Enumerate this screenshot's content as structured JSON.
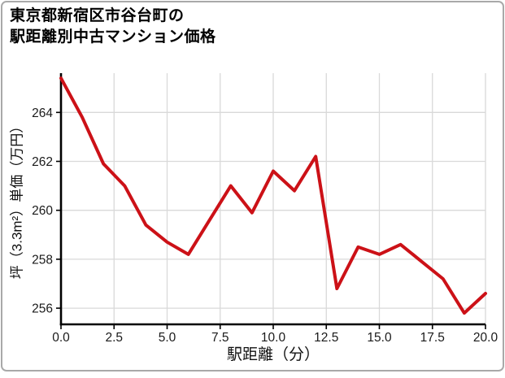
{
  "title": {
    "line1": "東京都新宿区市谷台町の",
    "line2": "駅距離別中古マンション価格"
  },
  "colors": {
    "line": "#cc1117",
    "grid": "#d9d9d9",
    "spine": "#000000",
    "tick_text": "#1a1a1a",
    "frame_border": "#a9a9a9",
    "background": "#ffffff"
  },
  "chart_data": {
    "type": "line",
    "title": "東京都新宿区市谷台町の駅距離別中古マンション価格",
    "xlabel": "駅距離（分）",
    "ylabel": "坪（3.3m²）単価（万円）",
    "x": [
      0,
      1,
      2,
      3,
      4,
      5,
      6,
      7,
      8,
      9,
      10,
      11,
      12,
      13,
      14,
      15,
      16,
      17,
      18,
      19,
      20
    ],
    "values": [
      265.4,
      263.8,
      261.9,
      261.0,
      259.4,
      258.7,
      258.2,
      259.6,
      261.0,
      259.9,
      261.6,
      260.8,
      262.2,
      256.8,
      258.5,
      258.2,
      258.6,
      257.9,
      257.2,
      255.8,
      256.6
    ],
    "xtick_labels": [
      "0.0",
      "2.5",
      "5.0",
      "7.5",
      "10.0",
      "12.5",
      "15.0",
      "17.5",
      "20.0"
    ],
    "ytick_labels": [
      "256",
      "258",
      "260",
      "262",
      "264"
    ],
    "xlim": [
      0,
      20
    ],
    "ylim": [
      255.3,
      265.6
    ],
    "grid": true,
    "legend": "none"
  }
}
